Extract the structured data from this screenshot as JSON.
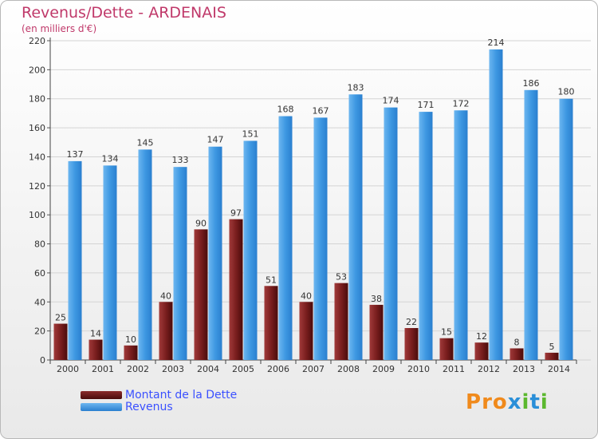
{
  "chart_data": {
    "type": "bar",
    "title": "Revenus/Dette - ARDENAIS",
    "subtitle": "(en milliers d'€)",
    "categories": [
      "2000",
      "2001",
      "2002",
      "2003",
      "2004",
      "2005",
      "2006",
      "2007",
      "2008",
      "2009",
      "2010",
      "2011",
      "2012",
      "2013",
      "2014"
    ],
    "series": [
      {
        "name": "Montant de la Dette",
        "color": "#6e1515",
        "values": [
          25,
          14,
          10,
          40,
          90,
          97,
          51,
          40,
          53,
          38,
          22,
          15,
          12,
          8,
          5
        ]
      },
      {
        "name": "Revenus",
        "color": "#3b94df",
        "values": [
          137,
          134,
          145,
          133,
          147,
          151,
          168,
          167,
          183,
          174,
          171,
          172,
          214,
          186,
          180
        ]
      }
    ],
    "ylim": [
      0,
      220
    ],
    "yticks": [
      0,
      20,
      40,
      60,
      80,
      100,
      120,
      140,
      160,
      180,
      200,
      220
    ],
    "grid": true,
    "legend_position": "bottom-left"
  },
  "logo": {
    "text": "Proxiti",
    "letter_colors": [
      "#f08a1c",
      "#f08a1c",
      "#f08a1c",
      "#2a8fd8",
      "#5bb82e",
      "#2a8fd8",
      "#5bb82e"
    ]
  }
}
